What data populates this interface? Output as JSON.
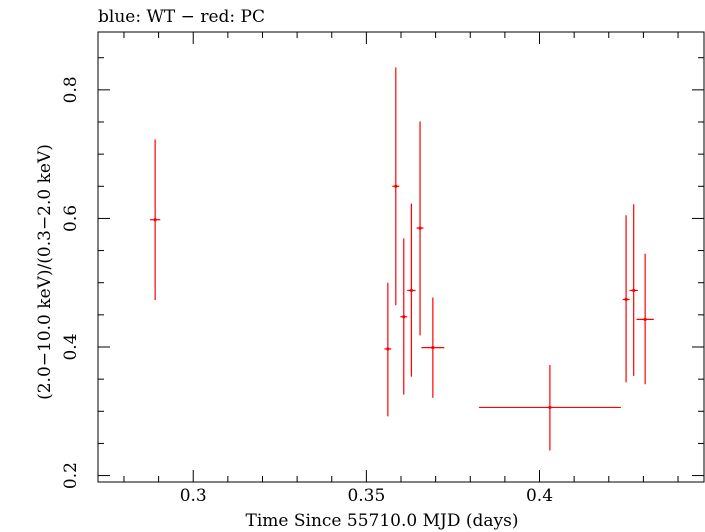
{
  "chart_data": {
    "type": "scatter",
    "title": "blue: WT − red: PC",
    "xlabel": "Time Since 55710.0 MJD (days)",
    "ylabel": "(2.0−10.0 keV)/(0.3−2.0 keV)",
    "xlim": [
      0.2725,
      0.4475
    ],
    "ylim": [
      0.19,
      0.89
    ],
    "x_ticks": [
      0.3,
      0.35,
      0.4
    ],
    "x_tick_labels": [
      "0.3",
      "0.35",
      "0.4"
    ],
    "x_minor_step": 0.01,
    "y_ticks": [
      0.2,
      0.4,
      0.6,
      0.8
    ],
    "y_tick_labels": [
      "0.2",
      "0.4",
      "0.6",
      "0.8"
    ],
    "y_minor_step": 0.05,
    "grid": false,
    "series": [
      {
        "color": "#ff0000",
        "points": [
          {
            "x": 0.289,
            "y": 0.598,
            "xerr": 0.0015,
            "yerr_low": 0.125,
            "yerr_high": 0.125
          },
          {
            "x": 0.3562,
            "y": 0.397,
            "xerr": 0.001,
            "yerr_low": 0.105,
            "yerr_high": 0.103
          },
          {
            "x": 0.3585,
            "y": 0.65,
            "xerr": 0.001,
            "yerr_low": 0.185,
            "yerr_high": 0.185
          },
          {
            "x": 0.3608,
            "y": 0.447,
            "xerr": 0.001,
            "yerr_low": 0.121,
            "yerr_high": 0.122
          },
          {
            "x": 0.363,
            "y": 0.488,
            "xerr": 0.0012,
            "yerr_low": 0.134,
            "yerr_high": 0.135
          },
          {
            "x": 0.3655,
            "y": 0.585,
            "xerr": 0.001,
            "yerr_low": 0.167,
            "yerr_high": 0.166
          },
          {
            "x": 0.3692,
            "y": 0.399,
            "xerr": 0.0033,
            "yerr_low": 0.078,
            "yerr_high": 0.078
          },
          {
            "x": 0.403,
            "y": 0.306,
            "xerr": 0.0205,
            "yerr_low": 0.067,
            "yerr_high": 0.066
          },
          {
            "x": 0.425,
            "y": 0.474,
            "xerr": 0.001,
            "yerr_low": 0.129,
            "yerr_high": 0.131
          },
          {
            "x": 0.4272,
            "y": 0.488,
            "xerr": 0.0012,
            "yerr_low": 0.133,
            "yerr_high": 0.134
          },
          {
            "x": 0.4305,
            "y": 0.443,
            "xerr": 0.0025,
            "yerr_low": 0.101,
            "yerr_high": 0.102
          }
        ]
      }
    ]
  }
}
